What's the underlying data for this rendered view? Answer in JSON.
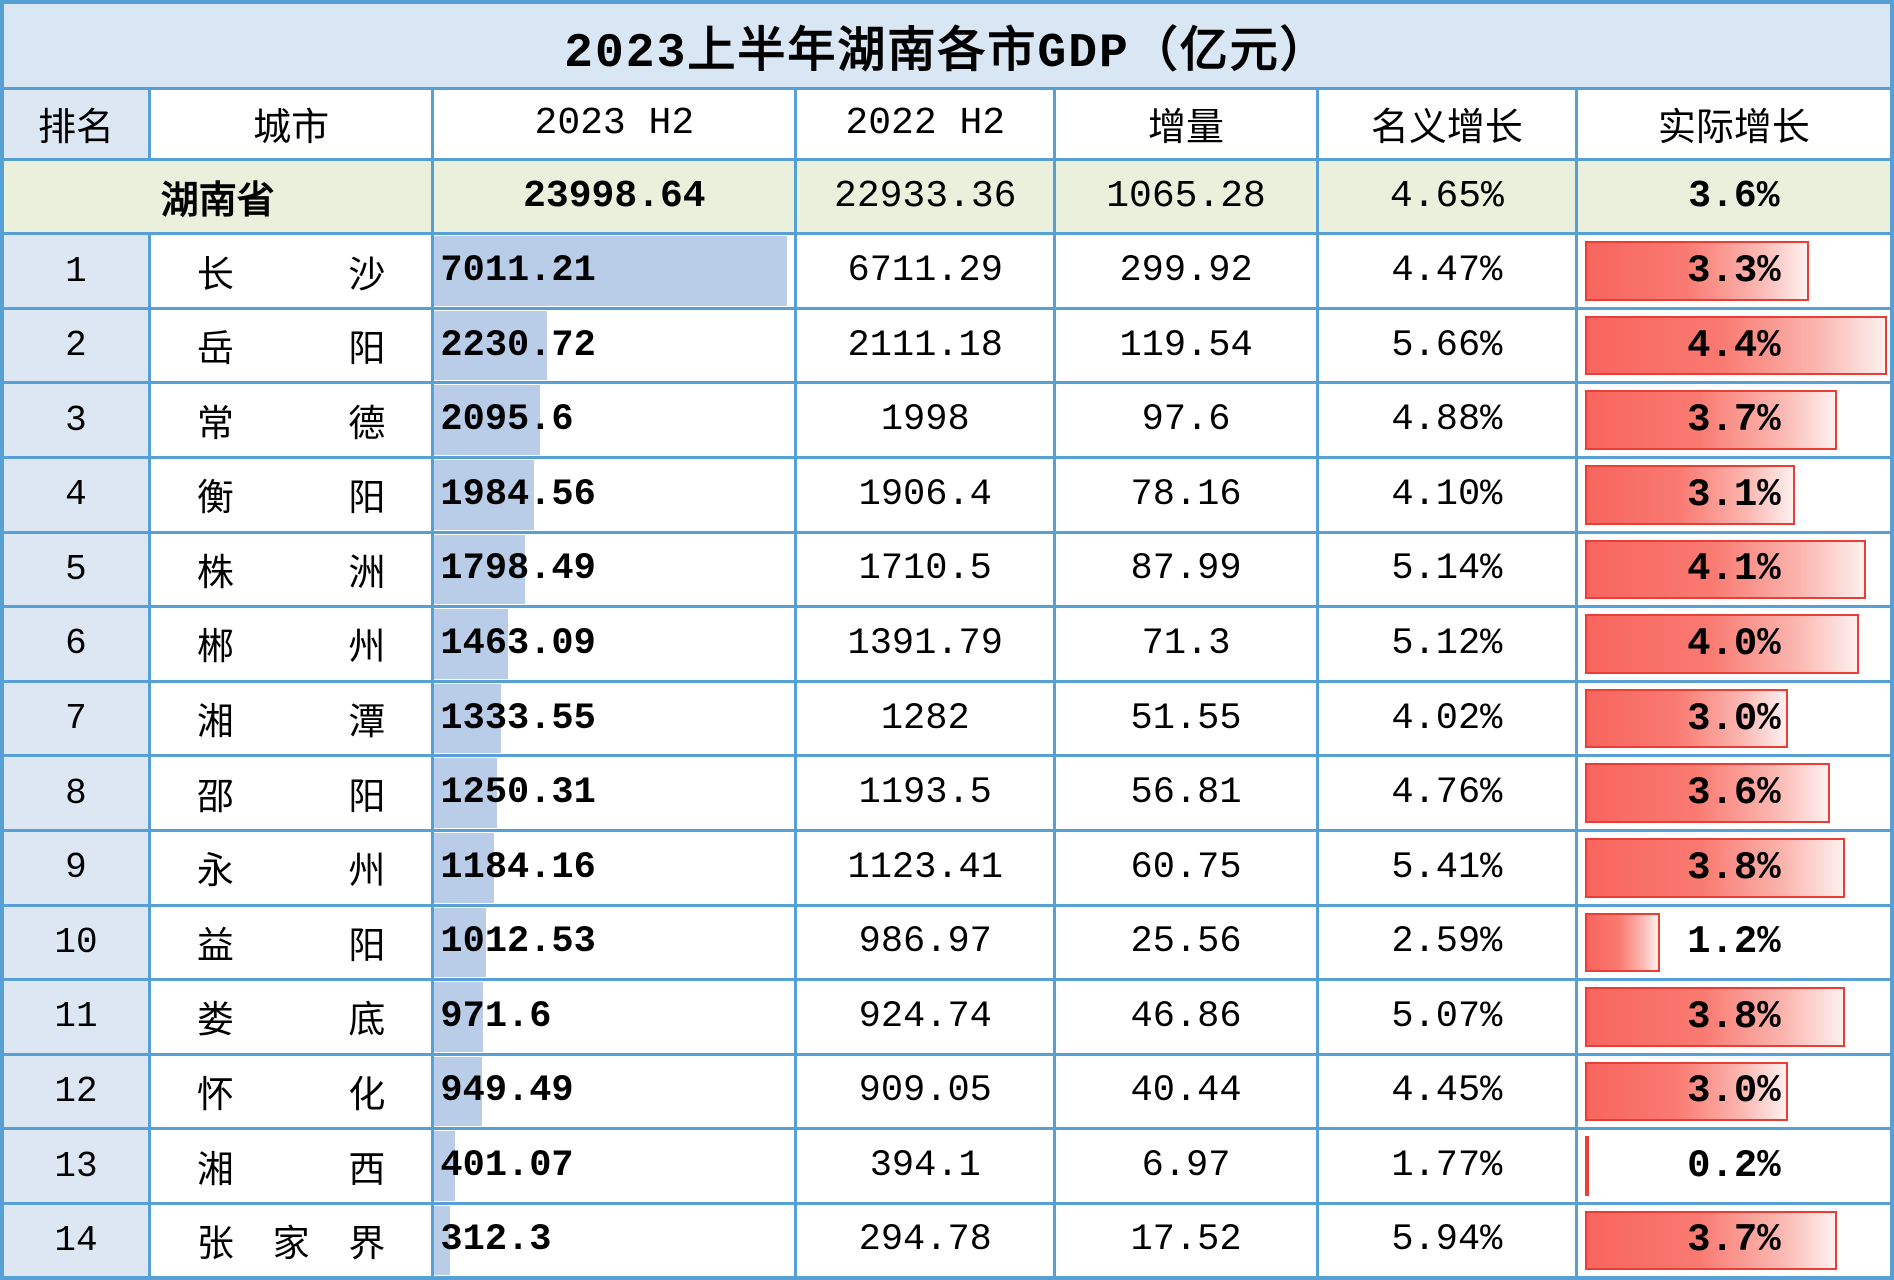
{
  "title": "2023上半年湖南各市GDP（亿元）",
  "columns": [
    "排名",
    "城市",
    "2023 H2",
    "2022 H2",
    "增量",
    "名义增长",
    "实际增长"
  ],
  "province": {
    "name": "湖南省",
    "gdp2023": "23998.64",
    "gdp2022": "22933.36",
    "delta": "1065.28",
    "nominal": "4.65%",
    "real": "3.6%"
  },
  "rows": [
    {
      "rank": "1",
      "city": "长沙",
      "gdp2023": "7011.21",
      "gdp2022": "6711.29",
      "delta": "299.92",
      "nominal": "4.47%",
      "real": "3.3%"
    },
    {
      "rank": "2",
      "city": "岳阳",
      "gdp2023": "2230.72",
      "gdp2022": "2111.18",
      "delta": "119.54",
      "nominal": "5.66%",
      "real": "4.4%"
    },
    {
      "rank": "3",
      "city": "常德",
      "gdp2023": "2095.6",
      "gdp2022": "1998",
      "delta": "97.6",
      "nominal": "4.88%",
      "real": "3.7%"
    },
    {
      "rank": "4",
      "city": "衡阳",
      "gdp2023": "1984.56",
      "gdp2022": "1906.4",
      "delta": "78.16",
      "nominal": "4.10%",
      "real": "3.1%"
    },
    {
      "rank": "5",
      "city": "株洲",
      "gdp2023": "1798.49",
      "gdp2022": "1710.5",
      "delta": "87.99",
      "nominal": "5.14%",
      "real": "4.1%"
    },
    {
      "rank": "6",
      "city": "郴州",
      "gdp2023": "1463.09",
      "gdp2022": "1391.79",
      "delta": "71.3",
      "nominal": "5.12%",
      "real": "4.0%"
    },
    {
      "rank": "7",
      "city": "湘潭",
      "gdp2023": "1333.55",
      "gdp2022": "1282",
      "delta": "51.55",
      "nominal": "4.02%",
      "real": "3.0%"
    },
    {
      "rank": "8",
      "city": "邵阳",
      "gdp2023": "1250.31",
      "gdp2022": "1193.5",
      "delta": "56.81",
      "nominal": "4.76%",
      "real": "3.6%"
    },
    {
      "rank": "9",
      "city": "永州",
      "gdp2023": "1184.16",
      "gdp2022": "1123.41",
      "delta": "60.75",
      "nominal": "5.41%",
      "real": "3.8%"
    },
    {
      "rank": "10",
      "city": "益阳",
      "gdp2023": "1012.53",
      "gdp2022": "986.97",
      "delta": "25.56",
      "nominal": "2.59%",
      "real": "1.2%"
    },
    {
      "rank": "11",
      "city": "娄底",
      "gdp2023": "971.6",
      "gdp2022": "924.74",
      "delta": "46.86",
      "nominal": "5.07%",
      "real": "3.8%"
    },
    {
      "rank": "12",
      "city": "怀化",
      "gdp2023": "949.49",
      "gdp2022": "909.05",
      "delta": "40.44",
      "nominal": "4.45%",
      "real": "3.0%"
    },
    {
      "rank": "13",
      "city": "湘西",
      "gdp2023": "401.07",
      "gdp2022": "394.1",
      "delta": "6.97",
      "nominal": "1.77%",
      "real": "0.2%"
    },
    {
      "rank": "14",
      "city": "张家界",
      "gdp2023": "312.3",
      "gdp2022": "294.78",
      "delta": "17.52",
      "nominal": "5.94%",
      "real": "3.7%"
    }
  ],
  "colors": {
    "grid_border": "#56a0d6",
    "title_fill": "#d9e6f4",
    "rank_fill": "#dce7f3",
    "province_fill": "#eaf0dc",
    "databar_blue": "#b9cde8",
    "databar_red": "#f8655e",
    "databar_red_border": "#e93d35"
  },
  "chart_data": {
    "type": "table",
    "title": "2023上半年湖南各市GDP（亿元）",
    "columns": [
      "排名",
      "城市",
      "2023 H2",
      "2022 H2",
      "增量",
      "名义增长",
      "实际增长"
    ],
    "province_summary": {
      "城市": "湖南省",
      "2023_H2": 23998.64,
      "2022_H2": 22933.36,
      "增量": 1065.28,
      "名义增长_pct": 4.65,
      "实际增长_pct": 3.6
    },
    "rows": [
      [
        1,
        "长沙",
        7011.21,
        6711.29,
        299.92,
        4.47,
        3.3
      ],
      [
        2,
        "岳阳",
        2230.72,
        2111.18,
        119.54,
        5.66,
        4.4
      ],
      [
        3,
        "常德",
        2095.6,
        1998,
        97.6,
        4.88,
        3.7
      ],
      [
        4,
        "衡阳",
        1984.56,
        1906.4,
        78.16,
        4.1,
        3.1
      ],
      [
        5,
        "株洲",
        1798.49,
        1710.5,
        87.99,
        5.14,
        4.1
      ],
      [
        6,
        "郴州",
        1463.09,
        1391.79,
        71.3,
        5.12,
        4.0
      ],
      [
        7,
        "湘潭",
        1333.55,
        1282,
        51.55,
        4.02,
        3.0
      ],
      [
        8,
        "邵阳",
        1250.31,
        1193.5,
        56.81,
        4.76,
        3.6
      ],
      [
        9,
        "永州",
        1184.16,
        1123.41,
        60.75,
        5.41,
        3.8
      ],
      [
        10,
        "益阳",
        1012.53,
        986.97,
        25.56,
        2.59,
        1.2
      ],
      [
        11,
        "娄底",
        971.6,
        924.74,
        46.86,
        5.07,
        3.8
      ],
      [
        12,
        "怀化",
        949.49,
        909.05,
        40.44,
        4.45,
        3.0
      ],
      [
        13,
        "湘西",
        401.07,
        394.1,
        6.97,
        1.77,
        0.2
      ],
      [
        14,
        "张家界",
        312.3,
        294.78,
        17.52,
        5.94,
        3.7
      ]
    ],
    "databars": {
      "column_2023_H2": {
        "style": "solid light blue bar, left-aligned, scaled 0 to max value 7011.21"
      },
      "column_实际增长": {
        "style": "red gradient bar with red border, scaled 0 to max value 4.4"
      }
    },
    "legend_position": "none",
    "grid": true
  }
}
